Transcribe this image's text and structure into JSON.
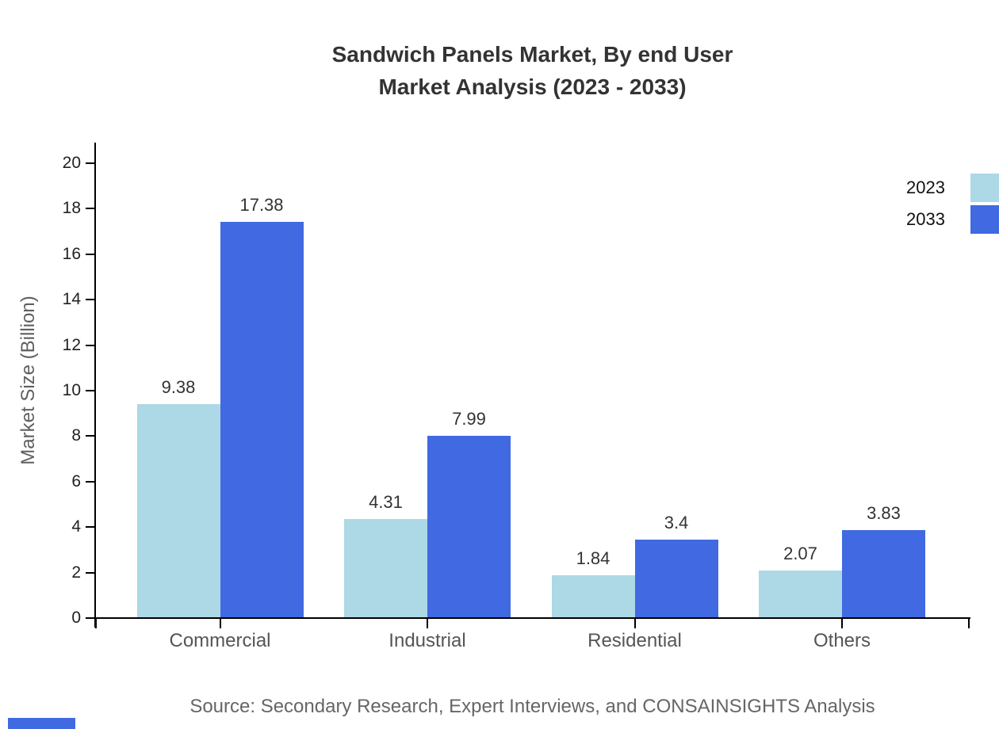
{
  "title": {
    "line1": "Sandwich Panels Market, By end User",
    "line2": "Market Analysis (2023 - 2033)"
  },
  "chart_data": {
    "type": "bar",
    "title": "Sandwich Panels Market, By end User Market Analysis (2023 - 2033)",
    "categories": [
      "Commercial",
      "Industrial",
      "Residential",
      "Others"
    ],
    "series": [
      {
        "name": "2023",
        "color": "#ADD8E6",
        "values": [
          9.38,
          4.31,
          1.84,
          2.07
        ]
      },
      {
        "name": "2033",
        "color": "#4169E1",
        "values": [
          17.38,
          7.99,
          3.4,
          3.83
        ]
      }
    ],
    "value_labels": [
      [
        "9.38",
        "17.38"
      ],
      [
        "4.31",
        "7.99"
      ],
      [
        "1.84",
        "3.4"
      ],
      [
        "2.07",
        "3.83"
      ]
    ],
    "xlabel": "",
    "ylabel": "Market Size (Billion)",
    "ylim": [
      0,
      20
    ],
    "yticks": [
      0,
      2,
      4,
      6,
      8,
      10,
      12,
      14,
      16,
      18,
      20
    ],
    "grid": false,
    "legend_position": "top-right"
  },
  "legend": {
    "items": [
      {
        "label": "2023",
        "color": "#ADD8E6"
      },
      {
        "label": "2033",
        "color": "#4169E1"
      }
    ]
  },
  "source": {
    "text": "Source: Secondary Research, Expert Interviews, and CONSAINSIGHTS Analysis"
  },
  "colors": {
    "series_2023": "#ADD8E6",
    "series_2033": "#4169E1",
    "title_text": "#333333",
    "axis_line": "#000000",
    "tick_label": "#222222",
    "category_label": "#555555",
    "axis_title": "#5f5f5f",
    "source_text": "#666666",
    "brand_accent": "#4169E1"
  }
}
